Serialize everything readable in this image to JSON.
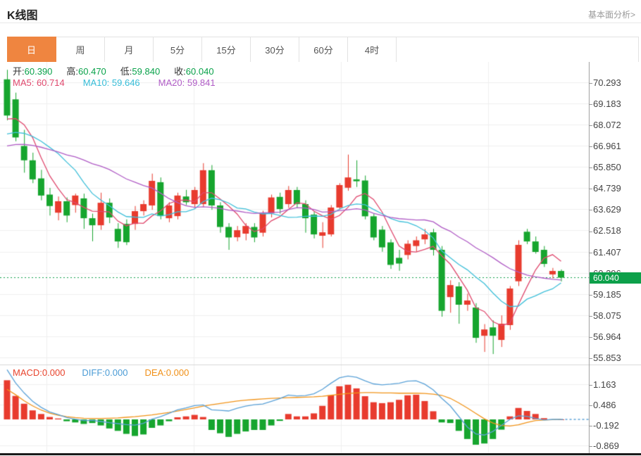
{
  "page": {
    "title": "K线图",
    "link": "基本面分析>"
  },
  "tabs": {
    "items": [
      "日",
      "周",
      "月",
      "5分",
      "15分",
      "30分",
      "60分",
      "4时"
    ],
    "selected": "日"
  },
  "legend": {
    "open_label": "开:",
    "open": "60.390",
    "high_label": "高:",
    "high": "60.470",
    "low_label": "低:",
    "low": "59.840",
    "close_label": "收:",
    "close": "60.040",
    "ma5_text": "MA5: 60.714",
    "ma10_text": "MA10: 59.646",
    "ma20_text": "MA20: 59.841"
  },
  "macd_legend": {
    "macd_text": "MACD:0.000",
    "diff_text": "DIFF:0.000",
    "dea_text": "DEA:0.000"
  },
  "price_marker": "60.040",
  "colors": {
    "up": "#e83b2e",
    "down": "#16a52e",
    "accent_tab": "#ef8540",
    "ma5": "#e0496e",
    "ma10": "#3fc0da",
    "ma20": "#b05cc6",
    "diff_line": "#5ba2d8",
    "dea_line": "#f29419",
    "price_line": "#0da04a",
    "grid": "#efefef",
    "axis": "#999999"
  },
  "chart_data": {
    "type": "candlestick",
    "panels": [
      {
        "name": "price",
        "y_ticks": [
          70.293,
          69.183,
          68.072,
          66.961,
          65.85,
          64.739,
          63.629,
          62.518,
          61.407,
          60.296,
          59.185,
          58.075,
          56.964,
          55.853
        ],
        "current_price": 60.04,
        "ma_periods": [
          5,
          10,
          20
        ],
        "pre_closes": [
          66.0,
          66.1,
          66.2,
          66.3,
          66.3,
          66.4,
          66.4,
          66.5,
          66.5,
          66.6,
          66.6,
          66.7,
          66.8,
          66.9,
          67.0,
          67.3,
          67.8,
          68.6,
          69.6
        ],
        "candles": [
          [
            70.45,
            70.95,
            68.3,
            68.55
          ],
          [
            69.4,
            69.75,
            67.2,
            67.4
          ],
          [
            66.95,
            67.8,
            65.55,
            66.2
          ],
          [
            66.2,
            66.6,
            65.0,
            65.2
          ],
          [
            65.25,
            65.7,
            64.1,
            64.35
          ],
          [
            64.4,
            64.75,
            63.3,
            63.8
          ],
          [
            63.45,
            64.3,
            63.05,
            64.05
          ],
          [
            64.05,
            64.25,
            62.95,
            63.3
          ],
          [
            63.85,
            64.45,
            63.45,
            64.35
          ],
          [
            64.2,
            64.45,
            62.6,
            63.16
          ],
          [
            63.16,
            63.4,
            61.95,
            62.79
          ],
          [
            62.79,
            64.5,
            62.55,
            63.97
          ],
          [
            63.97,
            64.2,
            62.9,
            63.2
          ],
          [
            62.6,
            62.9,
            61.6,
            61.94
          ],
          [
            62.86,
            63.1,
            61.75,
            61.9
          ],
          [
            62.86,
            63.8,
            62.55,
            63.53
          ],
          [
            63.53,
            64.1,
            63.3,
            63.9
          ],
          [
            63.83,
            65.5,
            63.6,
            65.12
          ],
          [
            65.05,
            65.3,
            63.1,
            63.27
          ],
          [
            63.16,
            64.0,
            62.95,
            63.83
          ],
          [
            63.27,
            64.5,
            63.1,
            64.35
          ],
          [
            64.3,
            64.65,
            63.85,
            64.0
          ],
          [
            63.9,
            64.8,
            63.7,
            64.64
          ],
          [
            63.9,
            66.05,
            63.75,
            65.68
          ],
          [
            65.68,
            65.95,
            63.6,
            63.83
          ],
          [
            63.83,
            64.0,
            62.4,
            62.7
          ],
          [
            62.7,
            62.9,
            61.5,
            62.15
          ],
          [
            62.16,
            62.75,
            61.95,
            62.53
          ],
          [
            62.35,
            62.9,
            62.0,
            62.75
          ],
          [
            62.7,
            62.9,
            61.9,
            62.15
          ],
          [
            62.4,
            63.55,
            62.2,
            63.42
          ],
          [
            63.42,
            64.4,
            63.2,
            64.25
          ],
          [
            64.28,
            64.5,
            63.4,
            63.64
          ],
          [
            63.9,
            64.85,
            63.7,
            64.64
          ],
          [
            64.64,
            64.8,
            63.7,
            63.9
          ],
          [
            63.9,
            64.1,
            62.4,
            63.16
          ],
          [
            63.35,
            63.5,
            62.1,
            62.31
          ],
          [
            62.24,
            62.95,
            61.6,
            62.42
          ],
          [
            62.31,
            63.85,
            62.2,
            63.72
          ],
          [
            63.72,
            65.0,
            63.6,
            64.9
          ],
          [
            64.76,
            66.5,
            64.6,
            65.3
          ],
          [
            65.2,
            66.2,
            64.8,
            65.1
          ],
          [
            65.14,
            65.4,
            63.1,
            63.26
          ],
          [
            63.26,
            63.4,
            62.0,
            62.15
          ],
          [
            62.56,
            62.75,
            61.4,
            61.63
          ],
          [
            61.89,
            62.05,
            60.5,
            60.71
          ],
          [
            61.08,
            61.5,
            60.4,
            60.78
          ],
          [
            61.23,
            62.0,
            61.0,
            61.82
          ],
          [
            61.7,
            62.2,
            61.4,
            62.0
          ],
          [
            62.05,
            62.6,
            61.8,
            62.31
          ],
          [
            62.42,
            62.6,
            61.2,
            61.5
          ],
          [
            61.5,
            61.7,
            57.99,
            58.3
          ],
          [
            59.02,
            59.9,
            58.2,
            59.65
          ],
          [
            59.58,
            59.8,
            57.62,
            58.62
          ],
          [
            58.62,
            59.2,
            58.3,
            58.84
          ],
          [
            58.47,
            58.7,
            56.62,
            56.88
          ],
          [
            56.99,
            57.6,
            56.14,
            57.32
          ],
          [
            57.43,
            57.8,
            56.03,
            56.99
          ],
          [
            56.77,
            58.06,
            56.4,
            57.62
          ],
          [
            57.55,
            59.6,
            57.3,
            59.47
          ],
          [
            59.85,
            62.0,
            59.6,
            61.76
          ],
          [
            62.45,
            62.6,
            61.8,
            61.94
          ],
          [
            61.94,
            62.2,
            61.3,
            61.39
          ],
          [
            61.5,
            61.7,
            60.6,
            60.76
          ],
          [
            60.21,
            60.55,
            60.0,
            60.39
          ],
          [
            60.39,
            60.47,
            59.84,
            60.04
          ]
        ]
      },
      {
        "name": "macd",
        "y_ticks": [
          1.163,
          0.486,
          -0.192,
          -0.869
        ],
        "histogram": [
          1.3,
          0.78,
          0.52,
          0.3,
          0.18,
          0.08,
          0.03,
          -0.06,
          -0.1,
          -0.15,
          -0.12,
          -0.2,
          -0.3,
          -0.38,
          -0.48,
          -0.55,
          -0.5,
          -0.28,
          -0.2,
          -0.06,
          0.07,
          0.1,
          0.15,
          0.08,
          -0.35,
          -0.46,
          -0.58,
          -0.48,
          -0.4,
          -0.35,
          -0.35,
          -0.2,
          -0.05,
          0.18,
          0.1,
          0.1,
          0.2,
          0.45,
          0.8,
          1.1,
          1.15,
          1.03,
          0.77,
          0.57,
          0.54,
          0.57,
          0.65,
          0.8,
          0.82,
          0.61,
          0.27,
          -0.1,
          -0.12,
          -0.38,
          -0.65,
          -0.84,
          -0.8,
          -0.65,
          -0.34,
          0.1,
          0.38,
          0.28,
          0.18,
          0.04,
          0.0,
          0.0
        ],
        "diff": [
          1.65,
          1.21,
          0.88,
          0.6,
          0.4,
          0.25,
          0.16,
          0.06,
          0.01,
          -0.04,
          -0.03,
          -0.07,
          -0.11,
          -0.14,
          -0.17,
          -0.19,
          -0.13,
          0.01,
          0.09,
          0.2,
          0.32,
          0.38,
          0.46,
          0.48,
          0.32,
          0.3,
          0.28,
          0.37,
          0.44,
          0.49,
          0.51,
          0.6,
          0.69,
          0.81,
          0.78,
          0.79,
          0.85,
          1.0,
          1.2,
          1.38,
          1.44,
          1.4,
          1.28,
          1.18,
          1.15,
          1.17,
          1.2,
          1.27,
          1.28,
          1.17,
          0.98,
          0.7,
          0.45,
          0.1,
          -0.25,
          -0.48,
          -0.52,
          -0.4,
          -0.2,
          0.0,
          0.12,
          0.1,
          0.03,
          -0.02,
          0.0,
          0.0
        ],
        "dea": [
          1.0,
          0.82,
          0.62,
          0.45,
          0.31,
          0.21,
          0.14,
          0.09,
          0.06,
          0.04,
          0.03,
          0.03,
          0.04,
          0.05,
          0.07,
          0.09,
          0.12,
          0.15,
          0.19,
          0.23,
          0.28,
          0.33,
          0.38,
          0.44,
          0.49,
          0.53,
          0.57,
          0.61,
          0.64,
          0.66,
          0.68,
          0.7,
          0.71,
          0.72,
          0.73,
          0.74,
          0.75,
          0.77,
          0.8,
          0.83,
          0.86,
          0.88,
          0.89,
          0.89,
          0.88,
          0.88,
          0.87,
          0.87,
          0.87,
          0.86,
          0.84,
          0.8,
          0.7,
          0.55,
          0.38,
          0.2,
          0.02,
          -0.12,
          -0.2,
          -0.22,
          -0.18,
          -0.1,
          -0.04,
          -0.02,
          -0.01,
          0.0
        ]
      }
    ]
  }
}
